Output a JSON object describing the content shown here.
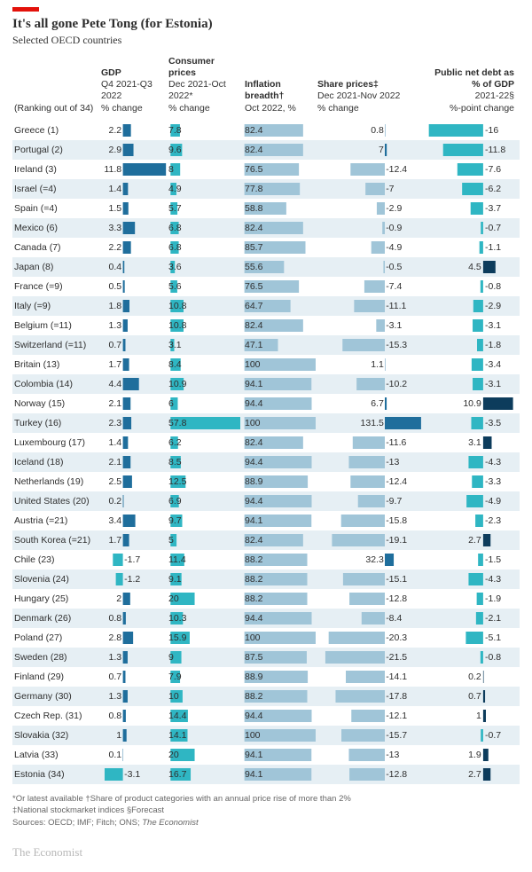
{
  "title": "It's all gone Pete Tong (for Estonia)",
  "subtitle": "Selected OECD countries",
  "ranking_label": "(Ranking out of 34)",
  "columns": [
    {
      "title": "GDP",
      "sub1": "Q4 2021-Q3 2022",
      "sub2": "% change"
    },
    {
      "title": "Consumer prices",
      "sub1": "Dec 2021-Oct 2022*",
      "sub2": "% change"
    },
    {
      "title": "Inflation breadth†",
      "sub1": "Oct 2022, %",
      "sub2": ""
    },
    {
      "title": "Share prices‡",
      "sub1": "Dec 2021-Nov 2022",
      "sub2": "% change"
    },
    {
      "title": "Public net debt as % of GDP",
      "sub1": "2021-22§",
      "sub2": "%-point change"
    }
  ],
  "colors": {
    "gdp_pos": "#1f6e9c",
    "gdp_neg": "#2fb6c3",
    "cpi": "#2fb6c3",
    "breadth": "#a0c5d8",
    "share_pos": "#1f6e9c",
    "share_neg": "#a0c5d8",
    "debt_pos": "#0d3c5c",
    "debt_neg": "#2fb6c3",
    "row_alt": "#e6eff4",
    "text": "#2e2e2e"
  },
  "scales": {
    "gdp": {
      "min": -4,
      "max": 12,
      "zero_frac": 0.35
    },
    "cpi": {
      "min": 0,
      "max": 60,
      "zero_frac": 0.05
    },
    "breadth": {
      "min": 0,
      "max": 100,
      "zero_frac": 0.02
    },
    "share": {
      "min": -25,
      "max": 135,
      "zero_frac": 0.65
    },
    "debt": {
      "min": -18,
      "max": 12,
      "zero_frac": 0.65
    }
  },
  "rows": [
    {
      "country": "Greece",
      "rank": "(1)",
      "gdp": 2.2,
      "cpi": 7.8,
      "breadth": 82.4,
      "share": 0.8,
      "debt": -16
    },
    {
      "country": "Portugal",
      "rank": "(2)",
      "gdp": 2.9,
      "cpi": 9.6,
      "breadth": 82.4,
      "share": 7.0,
      "debt": -11.8
    },
    {
      "country": "Ireland",
      "rank": "(3)",
      "gdp": 11.8,
      "cpi": 8.0,
      "breadth": 76.5,
      "share": -12.4,
      "debt": -7.6
    },
    {
      "country": "Israel",
      "rank": "(=4)",
      "gdp": 1.4,
      "cpi": 4.9,
      "breadth": 77.8,
      "share": -7.0,
      "debt": -6.2
    },
    {
      "country": "Spain",
      "rank": "(=4)",
      "gdp": 1.5,
      "cpi": 5.7,
      "breadth": 58.8,
      "share": -2.9,
      "debt": -3.7
    },
    {
      "country": "Mexico",
      "rank": "(6)",
      "gdp": 3.3,
      "cpi": 6.8,
      "breadth": 82.4,
      "share": -0.9,
      "debt": -0.7
    },
    {
      "country": "Canada",
      "rank": "(7)",
      "gdp": 2.2,
      "cpi": 6.8,
      "breadth": 85.7,
      "share": -4.9,
      "debt": -1.1
    },
    {
      "country": "Japan",
      "rank": "(8)",
      "gdp": 0.4,
      "cpi": 3.6,
      "breadth": 55.6,
      "share": -0.5,
      "debt": 4.5
    },
    {
      "country": "France",
      "rank": "(=9)",
      "gdp": 0.5,
      "cpi": 5.6,
      "breadth": 76.5,
      "share": -7.4,
      "debt": -0.8
    },
    {
      "country": "Italy",
      "rank": "(=9)",
      "gdp": 1.8,
      "cpi": 10.8,
      "breadth": 64.7,
      "share": -11.1,
      "debt": -2.9
    },
    {
      "country": "Belgium",
      "rank": "(=11)",
      "gdp": 1.3,
      "cpi": 10.8,
      "breadth": 82.4,
      "share": -3.1,
      "debt": -3.1
    },
    {
      "country": "Switzerland",
      "rank": "(=11)",
      "gdp": 0.7,
      "cpi": 3.1,
      "breadth": 47.1,
      "share": -15.3,
      "debt": -1.8
    },
    {
      "country": "Britain",
      "rank": "(13)",
      "gdp": 1.7,
      "cpi": 8.4,
      "breadth": 100,
      "share": 1.1,
      "debt": -3.4
    },
    {
      "country": "Colombia",
      "rank": "(14)",
      "gdp": 4.4,
      "cpi": 10.9,
      "breadth": 94.1,
      "share": -10.2,
      "debt": -3.1
    },
    {
      "country": "Norway",
      "rank": "(15)",
      "gdp": 2.1,
      "cpi": 6.0,
      "breadth": 94.4,
      "share": 6.7,
      "debt": 10.9
    },
    {
      "country": "Turkey",
      "rank": "(16)",
      "gdp": 2.3,
      "cpi": 57.8,
      "breadth": 100,
      "share": 131.5,
      "debt": -3.5
    },
    {
      "country": "Luxembourg",
      "rank": "(17)",
      "gdp": 1.4,
      "cpi": 6.2,
      "breadth": 82.4,
      "share": -11.6,
      "debt": 3.1
    },
    {
      "country": "Iceland",
      "rank": "(18)",
      "gdp": 2.1,
      "cpi": 8.5,
      "breadth": 94.4,
      "share": -13.0,
      "debt": -4.3
    },
    {
      "country": "Netherlands",
      "rank": "(19)",
      "gdp": 2.5,
      "cpi": 12.5,
      "breadth": 88.9,
      "share": -12.4,
      "debt": -3.3
    },
    {
      "country": "United States",
      "rank": "(20)",
      "gdp": 0.2,
      "cpi": 6.9,
      "breadth": 94.4,
      "share": -9.7,
      "debt": -4.9
    },
    {
      "country": "Austria",
      "rank": "(=21)",
      "gdp": 3.4,
      "cpi": 9.7,
      "breadth": 94.1,
      "share": -15.8,
      "debt": -2.3
    },
    {
      "country": "South Korea",
      "rank": "(=21)",
      "gdp": 1.7,
      "cpi": 5.0,
      "breadth": 82.4,
      "share": -19.1,
      "debt": 2.7
    },
    {
      "country": "Chile",
      "rank": "(23)",
      "gdp": -1.7,
      "cpi": 11.4,
      "breadth": 88.2,
      "share": 32.3,
      "debt": -1.5
    },
    {
      "country": "Slovenia",
      "rank": "(24)",
      "gdp": -1.2,
      "cpi": 9.1,
      "breadth": 88.2,
      "share": -15.1,
      "debt": -4.3
    },
    {
      "country": "Hungary",
      "rank": "(25)",
      "gdp": 2.0,
      "cpi": 20.0,
      "breadth": 88.2,
      "share": -12.8,
      "debt": -1.9
    },
    {
      "country": "Denmark",
      "rank": "(26)",
      "gdp": 0.8,
      "cpi": 10.3,
      "breadth": 94.4,
      "share": -8.4,
      "debt": -2.1
    },
    {
      "country": "Poland",
      "rank": "(27)",
      "gdp": 2.8,
      "cpi": 15.9,
      "breadth": 100,
      "share": -20.3,
      "debt": -5.1
    },
    {
      "country": "Sweden",
      "rank": "(28)",
      "gdp": 1.3,
      "cpi": 9.0,
      "breadth": 87.5,
      "share": -21.5,
      "debt": -0.8
    },
    {
      "country": "Finland",
      "rank": "(29)",
      "gdp": 0.7,
      "cpi": 7.9,
      "breadth": 88.9,
      "share": -14.1,
      "debt": 0.2
    },
    {
      "country": "Germany",
      "rank": "(30)",
      "gdp": 1.3,
      "cpi": 10.0,
      "breadth": 88.2,
      "share": -17.8,
      "debt": 0.7
    },
    {
      "country": "Czech Rep.",
      "rank": "(31)",
      "gdp": 0.8,
      "cpi": 14.4,
      "breadth": 94.4,
      "share": -12.1,
      "debt": 1.0
    },
    {
      "country": "Slovakia",
      "rank": "(32)",
      "gdp": 1,
      "cpi": 14.1,
      "breadth": 100,
      "share": -15.7,
      "debt": -0.7
    },
    {
      "country": "Latvia",
      "rank": "(33)",
      "gdp": 0.1,
      "cpi": 20.0,
      "breadth": 94.1,
      "share": -13.0,
      "debt": 1.9
    },
    {
      "country": "Estonia",
      "rank": "(34)",
      "gdp": -3.1,
      "cpi": 16.7,
      "breadth": 94.1,
      "share": -12.8,
      "debt": 2.7
    }
  ],
  "footnotes": "*Or latest available   †Share of product categories with an annual price rise of more than 2%\n‡National stockmarket indices   §Forecast",
  "sources": "Sources: OECD; IMF; Fitch; ONS; The Economist",
  "brand": "The Economist"
}
